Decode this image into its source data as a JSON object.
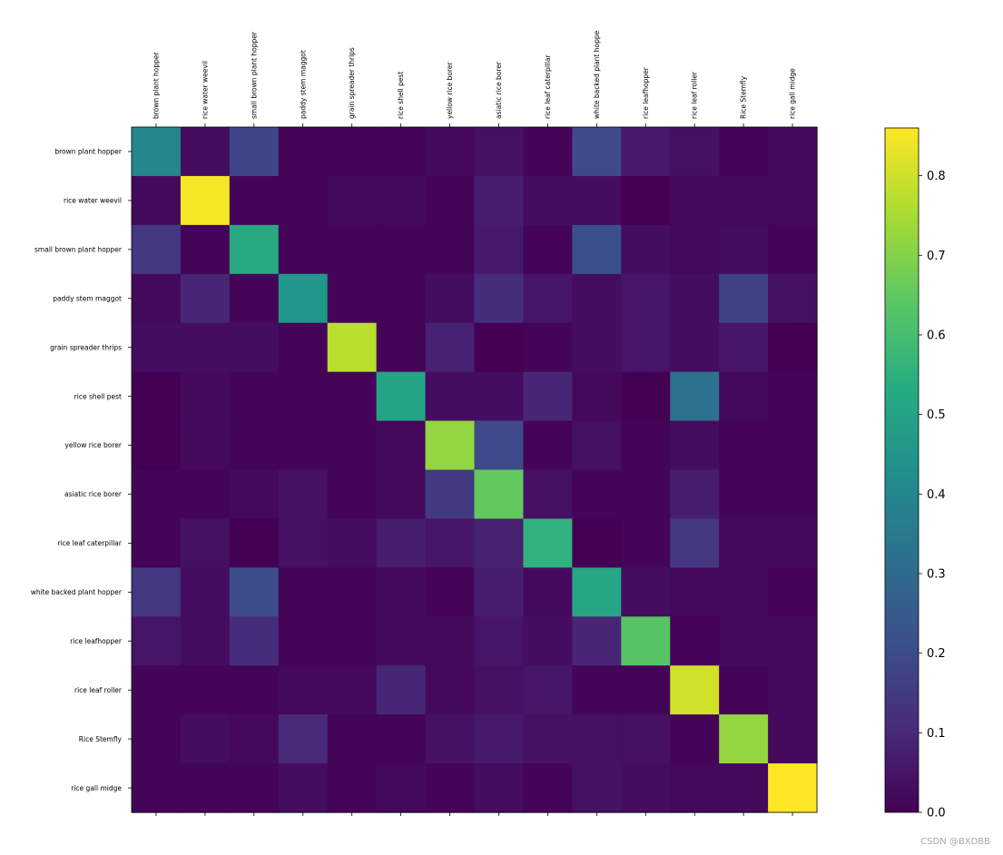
{
  "chart_data": {
    "type": "heatmap",
    "title": "",
    "x_labels": [
      "brown plant hopper",
      "rice water weevil",
      "small brown plant hopper",
      "paddy stem maggot",
      "grain spreader thrips",
      "rice shell pest",
      "yellow rice borer",
      "asiatic rice borer",
      "rice leaf caterpillar",
      "white backed plant hoppe",
      "rice leafhopper",
      "rice leaf roller",
      "Rice Stemfly",
      "rice gall midge"
    ],
    "y_labels": [
      "brown plant hopper",
      "rice water weevil",
      "small brown plant hopper",
      "paddy stem maggot",
      "grain spreader thrips",
      "rice shell pest",
      "yellow rice borer",
      "asiatic rice borer",
      "rice leaf caterpillar",
      "white backed plant hopper",
      "rice leafhopper",
      "rice leaf roller",
      "Rice Stemfly",
      "rice gall midge"
    ],
    "values": [
      [
        0.4,
        0.03,
        0.18,
        0.01,
        0.01,
        0.01,
        0.02,
        0.04,
        0.01,
        0.19,
        0.06,
        0.04,
        0.01,
        0.02
      ],
      [
        0.02,
        0.85,
        0.01,
        0.01,
        0.02,
        0.02,
        0.01,
        0.07,
        0.03,
        0.03,
        0.0,
        0.02,
        0.02,
        0.02
      ],
      [
        0.14,
        0.01,
        0.52,
        0.01,
        0.01,
        0.01,
        0.01,
        0.06,
        0.01,
        0.21,
        0.03,
        0.02,
        0.03,
        0.01
      ],
      [
        0.02,
        0.09,
        0.01,
        0.45,
        0.01,
        0.01,
        0.03,
        0.11,
        0.05,
        0.03,
        0.05,
        0.03,
        0.17,
        0.04
      ],
      [
        0.03,
        0.03,
        0.03,
        0.01,
        0.77,
        0.01,
        0.08,
        0.0,
        0.01,
        0.03,
        0.05,
        0.03,
        0.05,
        0.0
      ],
      [
        0.0,
        0.02,
        0.01,
        0.01,
        0.01,
        0.5,
        0.03,
        0.03,
        0.09,
        0.02,
        0.0,
        0.32,
        0.02,
        0.01
      ],
      [
        0.0,
        0.02,
        0.01,
        0.01,
        0.01,
        0.02,
        0.72,
        0.19,
        0.01,
        0.04,
        0.01,
        0.03,
        0.01,
        0.01
      ],
      [
        0.01,
        0.01,
        0.02,
        0.04,
        0.01,
        0.02,
        0.15,
        0.65,
        0.04,
        0.01,
        0.01,
        0.07,
        0.01,
        0.01
      ],
      [
        0.01,
        0.04,
        0.0,
        0.04,
        0.03,
        0.07,
        0.05,
        0.08,
        0.55,
        0.0,
        0.01,
        0.14,
        0.02,
        0.02
      ],
      [
        0.14,
        0.03,
        0.2,
        0.01,
        0.01,
        0.02,
        0.01,
        0.07,
        0.02,
        0.51,
        0.03,
        0.02,
        0.02,
        0.01
      ],
      [
        0.05,
        0.03,
        0.11,
        0.01,
        0.01,
        0.02,
        0.02,
        0.05,
        0.03,
        0.09,
        0.63,
        0.01,
        0.02,
        0.02
      ],
      [
        0.01,
        0.01,
        0.01,
        0.02,
        0.02,
        0.09,
        0.02,
        0.04,
        0.05,
        0.01,
        0.01,
        0.8,
        0.01,
        0.02
      ],
      [
        0.01,
        0.03,
        0.02,
        0.1,
        0.01,
        0.01,
        0.04,
        0.06,
        0.04,
        0.04,
        0.04,
        0.01,
        0.72,
        0.02
      ],
      [
        0.01,
        0.01,
        0.01,
        0.03,
        0.01,
        0.02,
        0.01,
        0.03,
        0.01,
        0.04,
        0.03,
        0.02,
        0.02,
        0.86
      ]
    ],
    "colormap": "viridis",
    "colorbar": {
      "min": 0.0,
      "max": 0.86,
      "ticks": [
        "0.0",
        "0.1",
        "0.2",
        "0.3",
        "0.4",
        "0.5",
        "0.6",
        "0.7",
        "0.8"
      ]
    },
    "x_axis_position": "top",
    "grid": false
  },
  "watermark": "CSDN @BXDBB"
}
